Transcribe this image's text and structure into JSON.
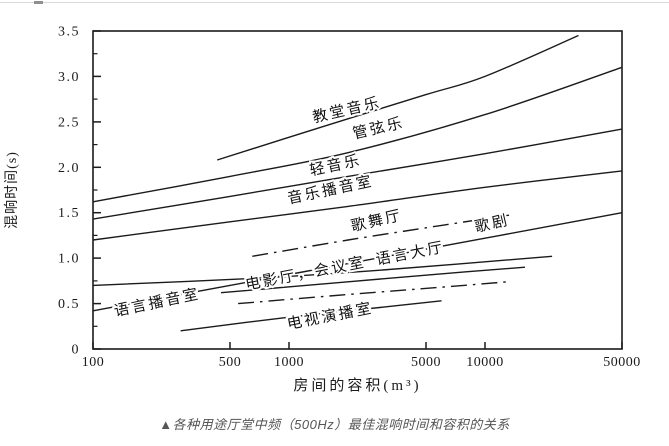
{
  "figure": {
    "caption": "▲各种用途厅堂中频（500Hz）最佳混响时间和容积的关系"
  },
  "chart_data": {
    "type": "line",
    "title": "",
    "xlabel": "房间的容积(m³)",
    "ylabel": "混响时间(s)",
    "x_scale": "log",
    "xlim": [
      100,
      50000
    ],
    "ylim": [
      0,
      3.5
    ],
    "grid": false,
    "legend": "inline-rotated-labels",
    "line_color": "#1b1b1b",
    "frame_color": "#1b1b1b",
    "label_color": "#111111",
    "x_ticks": [
      100,
      500,
      1000,
      5000,
      10000,
      50000
    ],
    "x_tick_labels": [
      "100",
      "500",
      "1000",
      "5000",
      "10000",
      "50000"
    ],
    "y_ticks": [
      0,
      0.5,
      1.0,
      1.5,
      2.0,
      2.5,
      3.0,
      3.5
    ],
    "y_tick_labels": [
      "0",
      "0.5",
      "1.0",
      "1.5",
      "2.0",
      "2.5",
      "3.0",
      "3.5"
    ],
    "y_minor_ticks": [
      0.25,
      0.75,
      1.25,
      1.75,
      2.25,
      2.75,
      3.25
    ],
    "series": [
      {
        "name": "教堂音乐",
        "style": "solid",
        "points": [
          [
            430,
            2.08
          ],
          [
            1500,
            2.45
          ],
          [
            5000,
            2.8
          ],
          [
            10000,
            3.0
          ],
          [
            30000,
            3.45
          ]
        ],
        "label": {
          "x": 2000,
          "y": 2.58,
          "rotate": -13
        }
      },
      {
        "name": "管弦乐",
        "style": "solid",
        "points": [
          [
            100,
            1.62
          ],
          [
            500,
            1.9
          ],
          [
            2000,
            2.16
          ],
          [
            10000,
            2.58
          ],
          [
            50000,
            3.1
          ]
        ],
        "label": {
          "x": 2900,
          "y": 2.38,
          "rotate": -13
        }
      },
      {
        "name": "轻音乐",
        "style": "solid",
        "points": [
          [
            100,
            1.43
          ],
          [
            500,
            1.68
          ],
          [
            2000,
            1.9
          ],
          [
            10000,
            2.15
          ],
          [
            50000,
            2.42
          ]
        ],
        "label": {
          "x": 1750,
          "y": 1.97,
          "rotate": -12
        }
      },
      {
        "name": "音乐播音室",
        "style": "solid",
        "points": [
          [
            100,
            1.2
          ],
          [
            500,
            1.4
          ],
          [
            2000,
            1.57
          ],
          [
            10000,
            1.78
          ],
          [
            50000,
            1.96
          ]
        ],
        "label": {
          "x": 1650,
          "y": 1.7,
          "rotate": -12
        }
      },
      {
        "name": "歌舞厅",
        "style": "dashdot",
        "points": [
          [
            650,
            1.02
          ],
          [
            2000,
            1.2
          ],
          [
            6000,
            1.36
          ],
          [
            14000,
            1.48
          ]
        ],
        "label": {
          "x": 2840,
          "y": 1.36,
          "rotate": -13
        }
      },
      {
        "name": "歌剧",
        "style": "solid",
        "points": [
          [
            100,
            0.42
          ],
          [
            1000,
            0.82
          ],
          [
            10000,
            1.22
          ],
          [
            50000,
            1.5
          ]
        ],
        "label": {
          "x": 11000,
          "y": 1.33,
          "rotate": -13
        }
      },
      {
        "name": "语言大厅",
        "style": "solid",
        "points": [
          [
            100,
            0.7
          ],
          [
            700,
            0.78
          ],
          [
            3000,
            0.87
          ],
          [
            22000,
            1.02
          ]
        ],
        "label": {
          "x": 4200,
          "y": 1.0,
          "rotate": -11
        }
      },
      {
        "name": "电影厅，会议室",
        "style": "solid",
        "points": [
          [
            450,
            0.62
          ],
          [
            2000,
            0.74
          ],
          [
            8000,
            0.85
          ],
          [
            16000,
            0.9
          ]
        ],
        "label": {
          "x": 1230,
          "y": 0.78,
          "rotate": -11
        }
      },
      {
        "name": "电视演播室",
        "style": "dashdot",
        "points": [
          [
            550,
            0.5
          ],
          [
            2000,
            0.6
          ],
          [
            6000,
            0.68
          ],
          [
            13000,
            0.74
          ]
        ],
        "label": {
          "x": 1640,
          "y": 0.31,
          "rotate": -11
        }
      },
      {
        "name": "语言播音室",
        "style": "solid",
        "points": [
          [
            280,
            0.2
          ],
          [
            1000,
            0.35
          ],
          [
            3000,
            0.46
          ],
          [
            6000,
            0.53
          ]
        ],
        "label": {
          "x": 215,
          "y": 0.46,
          "rotate": -12
        }
      }
    ]
  }
}
